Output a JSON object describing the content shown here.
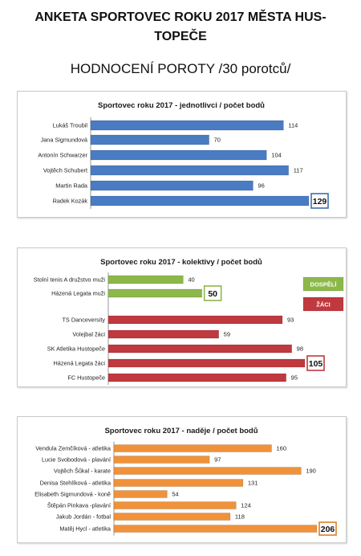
{
  "page": {
    "title_line1": "ANKETA SPORTOVEC ROKU 2017 MĚSTA HUS-",
    "title_line2": "TOPEČE",
    "subtitle": "HODNOCENÍ POROTY /30 porotců/"
  },
  "chart_data": [
    {
      "type": "bar",
      "orientation": "horizontal",
      "title": "Sportovec roku 2017 - jednotlivci / počet bodů",
      "categories": [
        "Lukáš Troubil",
        "Jana Sigmundová",
        "Antonín Schwarzer",
        "Vojtěch Schubert",
        "Martin Rada",
        "Radek Kozák"
      ],
      "values": [
        114,
        70,
        104,
        117,
        96,
        129
      ],
      "highlight_index": 5,
      "color": "#4a7cc4",
      "highlight_border_color": "#3f6fae",
      "xlim": [
        0,
        135
      ],
      "grid": false,
      "legend": null
    },
    {
      "type": "bar",
      "orientation": "horizontal",
      "title": "Sportovec roku 2017 - kolektivy / počet bodů",
      "categories": [
        "Stolní tenis A družstvo muži",
        "Házená Legata muži",
        "TS Danceversity",
        "Volejbal žáci",
        "SK Atletika Hustopeče",
        "Házená Legata žáci",
        "FC Hustopeče"
      ],
      "values": [
        40,
        50,
        93,
        59,
        98,
        105,
        95
      ],
      "groups": [
        "DOSPĚLÍ",
        "DOSPĚLÍ",
        "ŽÁCI",
        "ŽÁCI",
        "ŽÁCI",
        "ŽÁCI",
        "ŽÁCI"
      ],
      "highlight_indices": [
        1,
        5
      ],
      "series": [
        {
          "name": "DOSPĚLÍ",
          "color": "#8cb84a"
        },
        {
          "name": "ŽÁCI",
          "color": "#c0393f"
        }
      ],
      "xlim": [
        0,
        135
      ],
      "grid": false,
      "legend": "right"
    },
    {
      "type": "bar",
      "orientation": "horizontal",
      "title": "Sportovec roku 2017 - naděje / počet bodů",
      "categories": [
        "Vendula Zemčíková - atletika",
        "Lucie Svobodová - plavání",
        "Vojtěch Šůkal - karate",
        "Denisa Stehlíková - atletika",
        "Elisabeth Sigmundová - koně",
        "Štěpán Pinkava  -plavání",
        "Jakub Jordán - fotbal",
        "Matěj Hycl - atletika"
      ],
      "values": [
        160,
        97,
        190,
        131,
        54,
        124,
        118,
        206
      ],
      "highlight_index": 7,
      "color": "#f0923a",
      "highlight_border_color": "#e07f22",
      "xlim": [
        0,
        230
      ],
      "grid": false,
      "legend": null
    }
  ]
}
